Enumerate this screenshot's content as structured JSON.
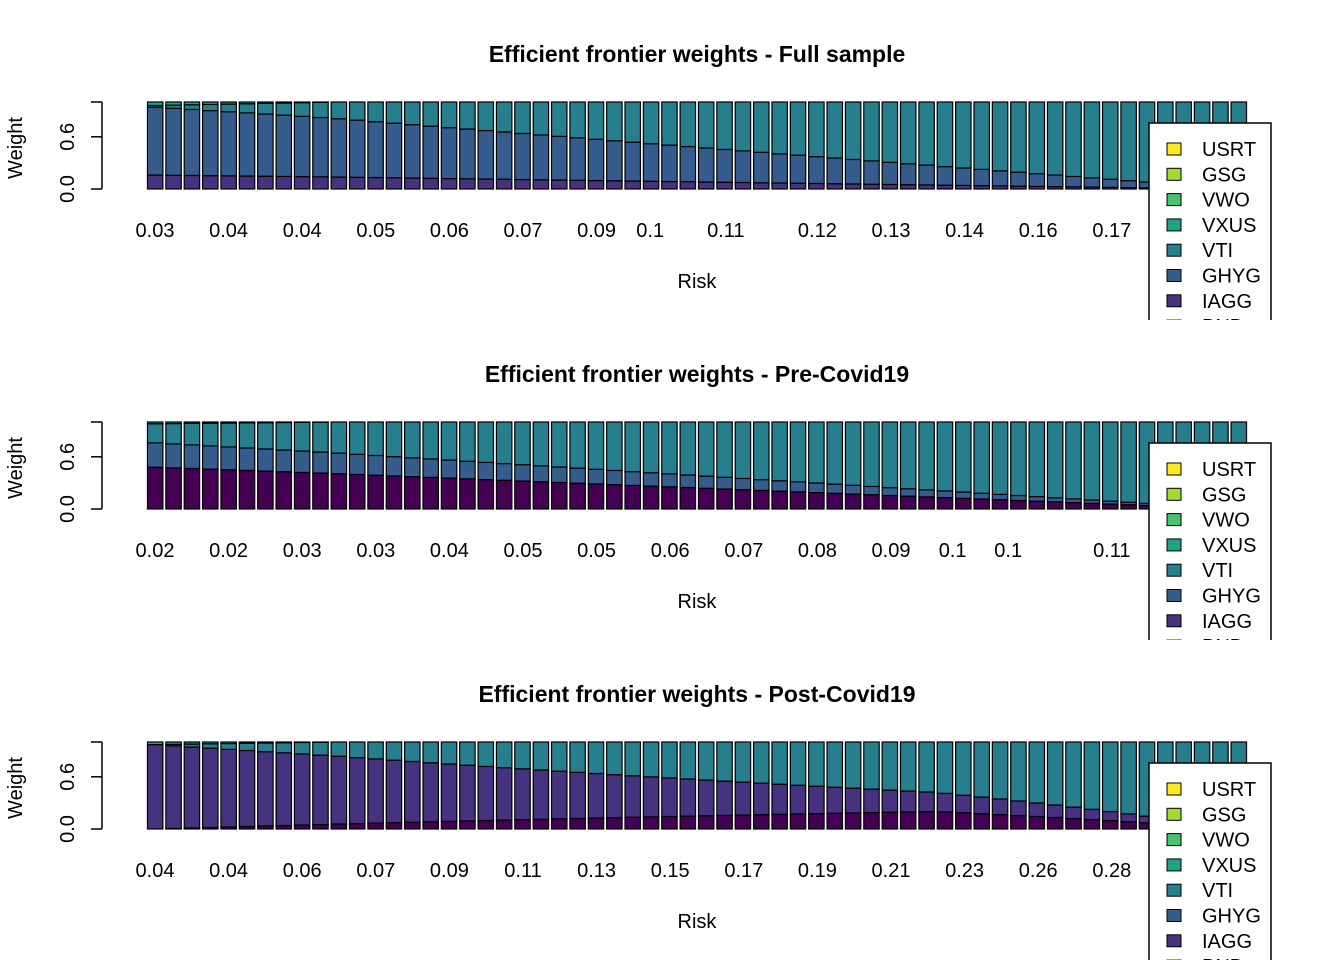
{
  "legend": [
    {
      "label": "USRT",
      "color": "#FDE725"
    },
    {
      "label": "GSG",
      "color": "#A0DA39"
    },
    {
      "label": "VWO",
      "color": "#4AC16D"
    },
    {
      "label": "VXUS",
      "color": "#1FA187"
    },
    {
      "label": "VTI",
      "color": "#277F8E"
    },
    {
      "label": "GHYG",
      "color": "#365C8D"
    },
    {
      "label": "IAGG",
      "color": "#46327E"
    },
    {
      "label": "BND",
      "color": "#440154"
    }
  ],
  "chart_data": [
    {
      "type": "bar",
      "stacked": true,
      "title": "Efficient frontier weights - Full sample",
      "xlabel": "Risk",
      "ylabel": "Weight",
      "y_ticks": [
        "0.0",
        "0.6"
      ],
      "ylim": [
        0,
        1
      ],
      "x_tick_labels": [
        "0.03",
        "0.04",
        "0.04",
        "0.05",
        "0.06",
        "0.07",
        "0.09",
        "0.1",
        "0.11",
        "0.12",
        "0.13",
        "0.14",
        "0.16",
        "0.17",
        "0.1"
      ],
      "n_bars": 60,
      "series": [
        {
          "name": "BND",
          "start": 0.0,
          "end": 0.0,
          "profile": "flat"
        },
        {
          "name": "IAGG",
          "start": 0.16,
          "end": 0.0,
          "profile": "linear"
        },
        {
          "name": "GHYG",
          "start": 0.78,
          "end": 0.0,
          "profile": "linear"
        },
        {
          "name": "VTI",
          "start": 0.02,
          "end": 1.0,
          "profile": "linear"
        },
        {
          "name": "VXUS",
          "start": 0.04,
          "end": 0.0,
          "profile": "fast-decay"
        }
      ]
    },
    {
      "type": "bar",
      "stacked": true,
      "title": "Efficient frontier weights - Pre-Covid19",
      "xlabel": "Risk",
      "ylabel": "Weight",
      "y_ticks": [
        "0.0",
        "0.6"
      ],
      "ylim": [
        0,
        1
      ],
      "x_tick_labels": [
        "0.02",
        "0.02",
        "0.03",
        "0.03",
        "0.04",
        "0.05",
        "0.05",
        "0.06",
        "0.07",
        "0.08",
        "0.09",
        "0.1",
        "0.1",
        "0.11",
        "0."
      ],
      "n_bars": 60,
      "series": [
        {
          "name": "BND",
          "start": 0.48,
          "end": 0.0,
          "profile": "linear"
        },
        {
          "name": "GHYG",
          "start": 0.28,
          "end": 0.0,
          "profile": "linear"
        },
        {
          "name": "VTI",
          "start": 0.22,
          "end": 1.0,
          "profile": "linear"
        },
        {
          "name": "VXUS",
          "start": 0.02,
          "end": 0.0,
          "profile": "fast-decay"
        }
      ]
    },
    {
      "type": "bar",
      "stacked": true,
      "title": "Efficient frontier weights - Post-Covid19",
      "xlabel": "Risk",
      "ylabel": "Weight",
      "y_ticks": [
        "0.0",
        "0.6"
      ],
      "ylim": [
        0,
        1
      ],
      "x_tick_labels": [
        "0.04",
        "0.04",
        "0.06",
        "0.07",
        "0.09",
        "0.11",
        "0.13",
        "0.15",
        "0.17",
        "0.19",
        "0.21",
        "0.23",
        "0.26",
        "0.28",
        ""
      ],
      "n_bars": 60,
      "series": [
        {
          "name": "BND",
          "start": 0.0,
          "end": 0.0,
          "profile": "hump",
          "peak": 0.25,
          "peak_at": 0.72
        },
        {
          "name": "IAGG",
          "start": 0.97,
          "end": 0.0,
          "profile": "linear"
        },
        {
          "name": "VTI",
          "start": 0.0,
          "end": 1.0,
          "profile": "linear"
        },
        {
          "name": "VXUS",
          "start": 0.03,
          "end": 0.0,
          "profile": "fast-decay"
        }
      ]
    }
  ]
}
